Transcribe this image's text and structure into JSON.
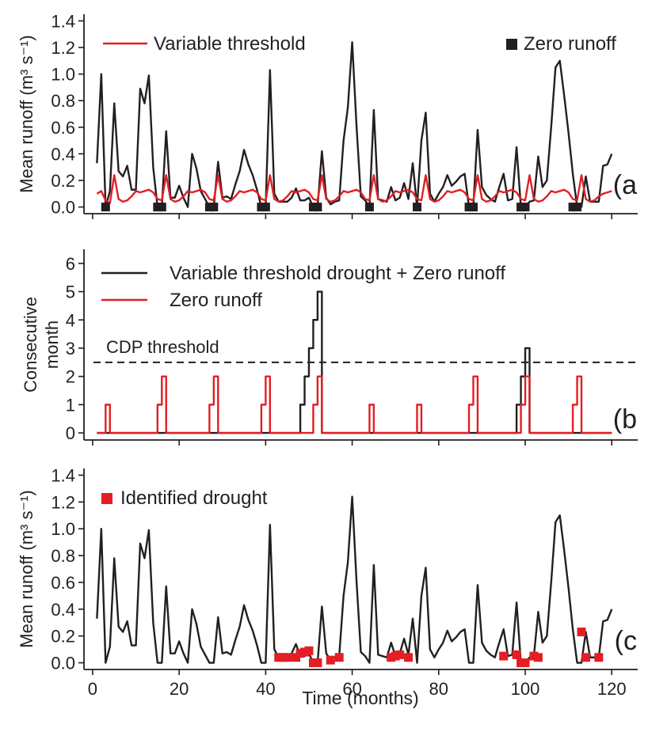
{
  "colors": {
    "black": "#231f20",
    "red": "#e31e24"
  },
  "xlabel": "Time (months)",
  "chart_data": [
    {
      "type": "line",
      "panel_label": "(a",
      "ylabel": "Mean runoff (m³ s⁻¹)",
      "xlim": [
        -2,
        126
      ],
      "ylim": [
        -0.05,
        1.45
      ],
      "yticks": [
        0.0,
        0.2,
        0.4,
        0.6,
        0.8,
        1.0,
        1.2,
        1.4
      ],
      "ytick_labels": [
        "0.0",
        "0.2",
        "0.4",
        "0.6",
        "0.8",
        "1.0",
        "1.2",
        "1.4"
      ],
      "legend": [
        {
          "label": "Variable threshold",
          "kind": "line",
          "color": "#e31e24"
        },
        {
          "label": "Zero runoff",
          "kind": "square",
          "color": "#231f20"
        }
      ],
      "series": [
        {
          "name": "Mean runoff",
          "color": "#231f20",
          "x": [
            1,
            2,
            3,
            4,
            5,
            6,
            7,
            8,
            9,
            10,
            11,
            12,
            13,
            14,
            15,
            16,
            17,
            18,
            19,
            20,
            21,
            22,
            23,
            24,
            25,
            26,
            27,
            28,
            29,
            30,
            31,
            32,
            33,
            34,
            35,
            36,
            37,
            38,
            39,
            40,
            41,
            42,
            43,
            44,
            45,
            46,
            47,
            48,
            49,
            50,
            51,
            52,
            53,
            54,
            55,
            56,
            57,
            58,
            59,
            60,
            61,
            62,
            63,
            64,
            65,
            66,
            67,
            68,
            69,
            70,
            71,
            72,
            73,
            74,
            75,
            76,
            77,
            78,
            79,
            80,
            81,
            82,
            83,
            84,
            85,
            86,
            87,
            88,
            89,
            90,
            91,
            92,
            93,
            94,
            95,
            96,
            97,
            98,
            99,
            100,
            101,
            102,
            103,
            104,
            105,
            106,
            107,
            108,
            109,
            110,
            111,
            112,
            113,
            114,
            115,
            116,
            117,
            118,
            119,
            120
          ],
          "y": [
            0.33,
            1.0,
            0.0,
            0.12,
            0.78,
            0.27,
            0.23,
            0.31,
            0.13,
            0.13,
            0.89,
            0.78,
            0.99,
            0.3,
            0.0,
            0.0,
            0.57,
            0.07,
            0.07,
            0.16,
            0.07,
            0.0,
            0.4,
            0.29,
            0.12,
            0.06,
            0.0,
            0.0,
            0.34,
            0.07,
            0.08,
            0.06,
            0.17,
            0.27,
            0.43,
            0.32,
            0.24,
            0.13,
            0.0,
            0.0,
            1.03,
            0.1,
            0.04,
            0.04,
            0.04,
            0.07,
            0.14,
            0.05,
            0.05,
            0.07,
            0.0,
            0.0,
            0.42,
            0.07,
            0.02,
            0.04,
            0.05,
            0.5,
            0.75,
            1.24,
            0.61,
            0.08,
            0.05,
            0.0,
            0.73,
            0.06,
            0.05,
            0.04,
            0.15,
            0.05,
            0.07,
            0.18,
            0.06,
            0.33,
            0.0,
            0.5,
            0.71,
            0.1,
            0.04,
            0.1,
            0.15,
            0.24,
            0.16,
            0.19,
            0.23,
            0.25,
            0.0,
            0.0,
            0.58,
            0.15,
            0.09,
            0.06,
            0.04,
            0.15,
            0.25,
            0.05,
            0.06,
            0.45,
            0.0,
            0.0,
            0.04,
            0.05,
            0.38,
            0.15,
            0.2,
            0.6,
            1.05,
            1.1,
            0.84,
            0.56,
            0.25,
            0.0,
            0.0,
            0.23,
            0.04,
            0.04,
            0.04,
            0.31,
            0.32,
            0.4
          ]
        },
        {
          "name": "Variable threshold",
          "color": "#e31e24",
          "x": [
            1,
            2,
            3,
            4,
            5,
            6,
            7,
            8,
            9,
            10,
            11,
            12,
            13,
            14,
            15,
            16,
            17,
            18,
            19,
            20,
            21,
            22,
            23,
            24,
            25,
            26,
            27,
            28,
            29,
            30,
            31,
            32,
            33,
            34,
            35,
            36,
            37,
            38,
            39,
            40,
            41,
            42,
            43,
            44,
            45,
            46,
            47,
            48,
            49,
            50,
            51,
            52,
            53,
            54,
            55,
            56,
            57,
            58,
            59,
            60,
            61,
            62,
            63,
            64,
            65,
            66,
            67,
            68,
            69,
            70,
            71,
            72,
            73,
            74,
            75,
            76,
            77,
            78,
            79,
            80,
            81,
            82,
            83,
            84,
            85,
            86,
            87,
            88,
            89,
            90,
            91,
            92,
            93,
            94,
            95,
            96,
            97,
            98,
            99,
            100,
            101,
            102,
            103,
            104,
            105,
            106,
            107,
            108,
            109,
            110,
            111,
            112,
            113,
            114,
            115,
            116,
            117,
            118,
            119,
            120
          ],
          "y": [
            0.1,
            0.12,
            0.05,
            0.03,
            0.24,
            0.06,
            0.04,
            0.05,
            0.08,
            0.12,
            0.11,
            0.12,
            0.13,
            0.11,
            0.06,
            0.05,
            0.24,
            0.06,
            0.04,
            0.05,
            0.08,
            0.12,
            0.11,
            0.12,
            0.13,
            0.11,
            0.06,
            0.05,
            0.24,
            0.06,
            0.04,
            0.05,
            0.08,
            0.12,
            0.11,
            0.12,
            0.13,
            0.11,
            0.06,
            0.05,
            0.24,
            0.06,
            0.04,
            0.05,
            0.08,
            0.12,
            0.11,
            0.12,
            0.13,
            0.11,
            0.06,
            0.05,
            0.24,
            0.06,
            0.04,
            0.05,
            0.08,
            0.12,
            0.11,
            0.12,
            0.13,
            0.11,
            0.06,
            0.05,
            0.24,
            0.06,
            0.04,
            0.05,
            0.08,
            0.12,
            0.11,
            0.12,
            0.13,
            0.11,
            0.06,
            0.05,
            0.24,
            0.06,
            0.04,
            0.05,
            0.08,
            0.12,
            0.11,
            0.12,
            0.13,
            0.11,
            0.06,
            0.05,
            0.24,
            0.06,
            0.04,
            0.05,
            0.08,
            0.12,
            0.11,
            0.12,
            0.13,
            0.11,
            0.06,
            0.05,
            0.24,
            0.06,
            0.04,
            0.05,
            0.08,
            0.12,
            0.11,
            0.12,
            0.13,
            0.11,
            0.06,
            0.05,
            0.24,
            0.06,
            0.04,
            0.05,
            0.08,
            0.1,
            0.11,
            0.12
          ]
        }
      ],
      "markers": {
        "name": "Zero runoff",
        "color": "#231f20",
        "x": [
          3,
          15,
          16,
          27,
          28,
          39,
          40,
          51,
          52,
          64,
          75,
          87,
          88,
          99,
          100,
          111,
          112
        ],
        "y": [
          0,
          0,
          0,
          0,
          0,
          0,
          0,
          0,
          0,
          0,
          0,
          0,
          0,
          0,
          0,
          0,
          0
        ]
      }
    },
    {
      "type": "line",
      "panel_label": "(b",
      "ylabel": "Consecutive month",
      "xlim": [
        -2,
        126
      ],
      "ylim": [
        -0.25,
        6.5
      ],
      "yticks": [
        0,
        1,
        2,
        3,
        4,
        5,
        6
      ],
      "ytick_labels": [
        "0",
        "1",
        "2",
        "3",
        "4",
        "5",
        "6"
      ],
      "reference_line": {
        "label": "CDP threshold",
        "y": 2.5,
        "style": "dashed"
      },
      "legend": [
        {
          "label": "Variable threshold drought + Zero runoff",
          "kind": "line",
          "color": "#231f20"
        },
        {
          "label": "Zero runoff",
          "kind": "line",
          "color": "#e31e24"
        }
      ],
      "series": [
        {
          "name": "Variable threshold drought + Zero runoff",
          "color": "#231f20",
          "step": true,
          "x": [
            1,
            48,
            49,
            50,
            51,
            52,
            53,
            98,
            99,
            100,
            101,
            102,
            120
          ],
          "y": [
            0,
            1,
            2,
            3,
            4,
            5,
            0,
            1,
            2,
            3,
            0,
            0,
            0
          ]
        },
        {
          "name": "Zero runoff",
          "color": "#e31e24",
          "step": true,
          "x": [
            1,
            3,
            4,
            15,
            16,
            17,
            27,
            28,
            29,
            39,
            40,
            41,
            51,
            52,
            53,
            64,
            65,
            75,
            76,
            87,
            88,
            89,
            99,
            100,
            101,
            111,
            112,
            113,
            120
          ],
          "y": [
            0,
            1,
            0,
            1,
            2,
            0,
            1,
            2,
            0,
            1,
            2,
            0,
            1,
            2,
            0,
            1,
            0,
            1,
            0,
            1,
            2,
            0,
            1,
            2,
            0,
            1,
            2,
            0,
            0
          ]
        }
      ]
    },
    {
      "type": "line",
      "panel_label": "(c",
      "ylabel": "Mean runoff (m³ s⁻¹)",
      "xlim": [
        -2,
        126
      ],
      "ylim": [
        -0.05,
        1.45
      ],
      "yticks": [
        0.0,
        0.2,
        0.4,
        0.6,
        0.8,
        1.0,
        1.2,
        1.4
      ],
      "ytick_labels": [
        "0.0",
        "0.2",
        "0.4",
        "0.6",
        "0.8",
        "1.0",
        "1.2",
        "1.4"
      ],
      "xticks": [
        0,
        20,
        40,
        60,
        80,
        100,
        120
      ],
      "xtick_labels": [
        "0",
        "20",
        "40",
        "60",
        "80",
        "100",
        "120"
      ],
      "legend": [
        {
          "label": "Identified drought",
          "kind": "square",
          "color": "#e31e24"
        }
      ],
      "series": [
        {
          "name": "Mean runoff",
          "color": "#231f20",
          "x": [
            1,
            2,
            3,
            4,
            5,
            6,
            7,
            8,
            9,
            10,
            11,
            12,
            13,
            14,
            15,
            16,
            17,
            18,
            19,
            20,
            21,
            22,
            23,
            24,
            25,
            26,
            27,
            28,
            29,
            30,
            31,
            32,
            33,
            34,
            35,
            36,
            37,
            38,
            39,
            40,
            41,
            42,
            43,
            44,
            45,
            46,
            47,
            48,
            49,
            50,
            51,
            52,
            53,
            54,
            55,
            56,
            57,
            58,
            59,
            60,
            61,
            62,
            63,
            64,
            65,
            66,
            67,
            68,
            69,
            70,
            71,
            72,
            73,
            74,
            75,
            76,
            77,
            78,
            79,
            80,
            81,
            82,
            83,
            84,
            85,
            86,
            87,
            88,
            89,
            90,
            91,
            92,
            93,
            94,
            95,
            96,
            97,
            98,
            99,
            100,
            101,
            102,
            103,
            104,
            105,
            106,
            107,
            108,
            109,
            110,
            111,
            112,
            113,
            114,
            115,
            116,
            117,
            118,
            119,
            120
          ],
          "y": [
            0.33,
            1.0,
            0.0,
            0.12,
            0.78,
            0.27,
            0.23,
            0.31,
            0.13,
            0.13,
            0.89,
            0.78,
            0.99,
            0.3,
            0.0,
            0.0,
            0.57,
            0.07,
            0.07,
            0.16,
            0.07,
            0.0,
            0.4,
            0.29,
            0.12,
            0.06,
            0.0,
            0.0,
            0.34,
            0.07,
            0.08,
            0.06,
            0.17,
            0.27,
            0.43,
            0.32,
            0.24,
            0.13,
            0.0,
            0.0,
            1.03,
            0.1,
            0.04,
            0.04,
            0.04,
            0.07,
            0.14,
            0.05,
            0.05,
            0.07,
            0.0,
            0.0,
            0.42,
            0.07,
            0.02,
            0.04,
            0.05,
            0.5,
            0.75,
            1.24,
            0.61,
            0.08,
            0.05,
            0.0,
            0.73,
            0.06,
            0.05,
            0.04,
            0.15,
            0.05,
            0.07,
            0.18,
            0.06,
            0.33,
            0.0,
            0.5,
            0.71,
            0.1,
            0.04,
            0.1,
            0.15,
            0.24,
            0.16,
            0.19,
            0.23,
            0.25,
            0.0,
            0.0,
            0.58,
            0.15,
            0.09,
            0.06,
            0.04,
            0.15,
            0.25,
            0.05,
            0.06,
            0.45,
            0.0,
            0.0,
            0.04,
            0.05,
            0.38,
            0.15,
            0.2,
            0.6,
            1.05,
            1.1,
            0.84,
            0.56,
            0.25,
            0.0,
            0.0,
            0.23,
            0.04,
            0.04,
            0.04,
            0.31,
            0.32,
            0.4
          ]
        }
      ],
      "markers": {
        "name": "Identified drought",
        "color": "#e31e24",
        "x": [
          43,
          44,
          45,
          47,
          48,
          49,
          50,
          51,
          52,
          55,
          57,
          69,
          70,
          71,
          73,
          95,
          98,
          99,
          100,
          102,
          103,
          113,
          114,
          117
        ],
        "y": [
          0.04,
          0.04,
          0.04,
          0.04,
          0.07,
          0.08,
          0.09,
          0.0,
          0.0,
          0.02,
          0.04,
          0.04,
          0.05,
          0.06,
          0.04,
          0.05,
          0.06,
          0.0,
          0.0,
          0.05,
          0.04,
          0.23,
          0.04,
          0.04
        ]
      }
    }
  ]
}
